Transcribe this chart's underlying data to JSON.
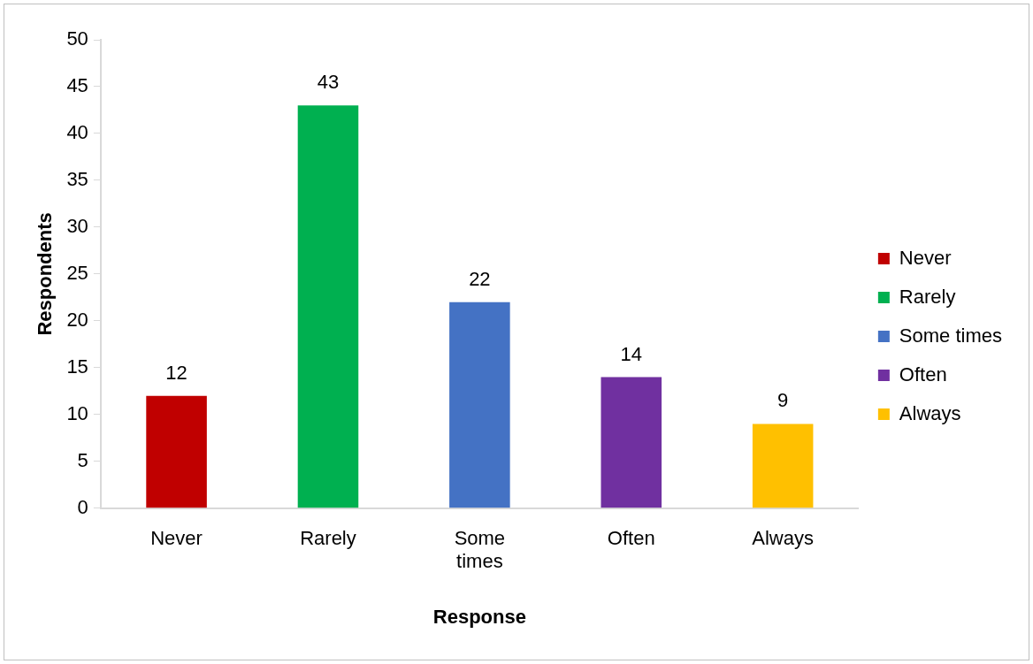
{
  "chart_data": {
    "type": "bar",
    "xlabel": "Response",
    "ylabel": "Respondents",
    "categories": [
      "Never",
      "Rarely",
      "Some times",
      "Often",
      "Always"
    ],
    "series": [
      {
        "name": "Never",
        "color": "#c00000",
        "values": [
          12,
          null,
          null,
          null,
          null
        ]
      },
      {
        "name": "Rarely",
        "color": "#00b050",
        "values": [
          null,
          43,
          null,
          null,
          null
        ]
      },
      {
        "name": "Some times",
        "color": "#4472c4",
        "values": [
          null,
          null,
          22,
          null,
          null
        ]
      },
      {
        "name": "Often",
        "color": "#7030a0",
        "values": [
          null,
          null,
          null,
          14,
          null
        ]
      },
      {
        "name": "Always",
        "color": "#ffc000",
        "values": [
          null,
          null,
          null,
          null,
          9
        ]
      }
    ],
    "ylim": [
      0,
      50
    ],
    "yticks": [
      0,
      5,
      10,
      15,
      20,
      25,
      30,
      35,
      40,
      45,
      50
    ],
    "grid": false,
    "legend": "right",
    "data_labels": true
  }
}
